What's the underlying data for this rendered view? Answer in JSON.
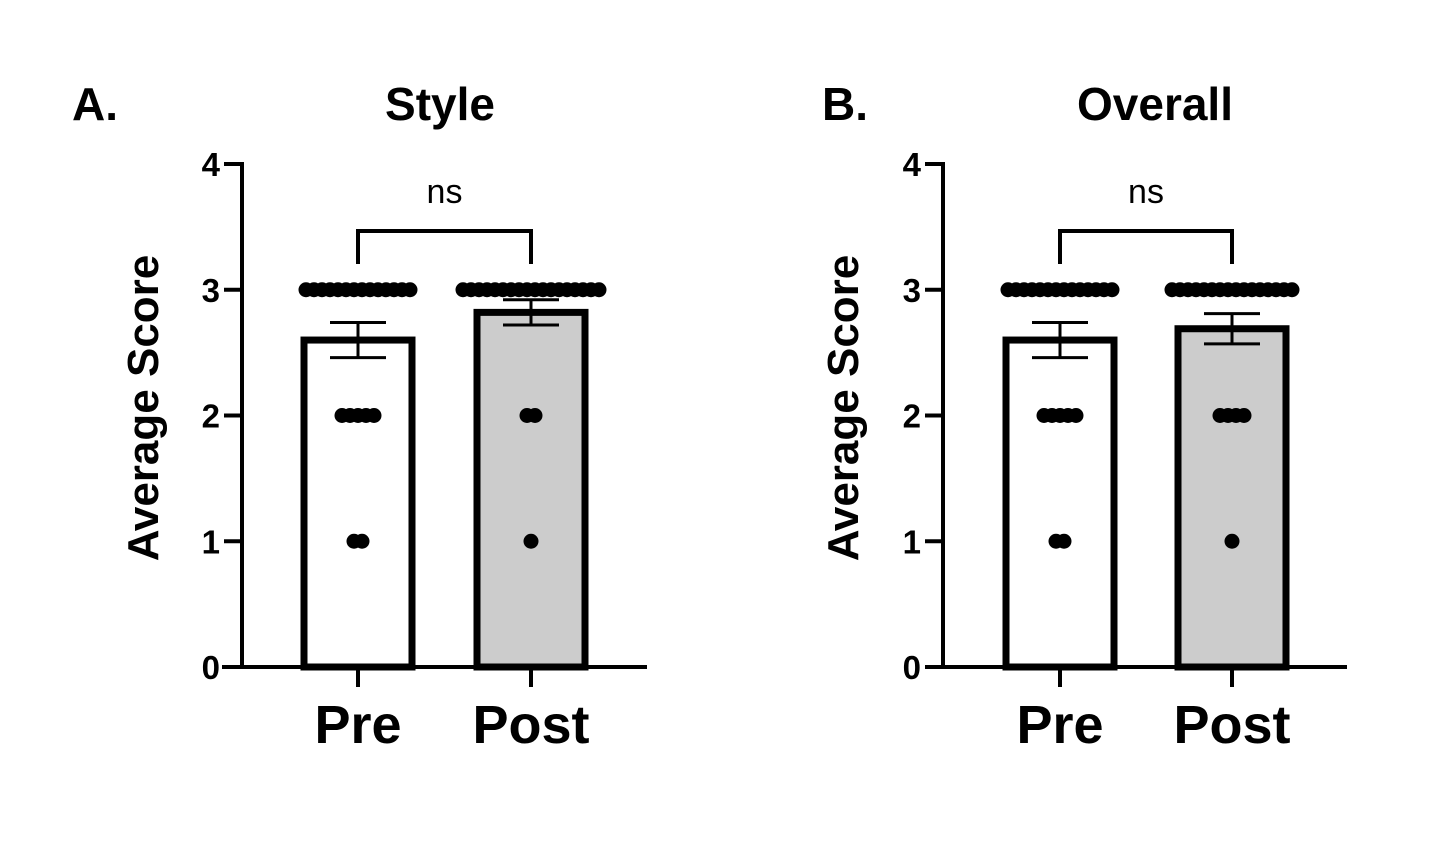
{
  "chart_data": [
    {
      "type": "bar",
      "panel_label": "A.",
      "title": "Style",
      "ylabel": "Average Score",
      "xlabel": "",
      "ylim": [
        0,
        4
      ],
      "yticks": [
        "0",
        "1",
        "2",
        "3",
        "4"
      ],
      "categories": [
        "Pre",
        "Post"
      ],
      "values": [
        2.6,
        2.82
      ],
      "error": [
        0.14,
        0.1
      ],
      "bar_colors": [
        "#ffffff",
        "#cccccc"
      ],
      "points": [
        [
          3,
          3,
          3,
          3,
          3,
          3,
          3,
          3,
          3,
          3,
          3,
          3,
          3,
          3,
          2,
          2,
          2,
          2,
          2,
          1,
          1
        ],
        [
          3,
          3,
          3,
          3,
          3,
          3,
          3,
          3,
          3,
          3,
          3,
          3,
          3,
          3,
          3,
          3,
          3,
          3,
          2,
          2,
          1
        ]
      ],
      "significance": {
        "label": "ns",
        "between": [
          "Pre",
          "Post"
        ]
      },
      "grid": false,
      "legend": "none"
    },
    {
      "type": "bar",
      "panel_label": "B.",
      "title": "Overall",
      "ylabel": "Average Score",
      "xlabel": "",
      "ylim": [
        0,
        4
      ],
      "yticks": [
        "0",
        "1",
        "2",
        "3",
        "4"
      ],
      "categories": [
        "Pre",
        "Post"
      ],
      "values": [
        2.6,
        2.69
      ],
      "error": [
        0.14,
        0.12
      ],
      "bar_colors": [
        "#ffffff",
        "#cccccc"
      ],
      "points": [
        [
          3,
          3,
          3,
          3,
          3,
          3,
          3,
          3,
          3,
          3,
          3,
          3,
          3,
          3,
          2,
          2,
          2,
          2,
          2,
          1,
          1
        ],
        [
          3,
          3,
          3,
          3,
          3,
          3,
          3,
          3,
          3,
          3,
          3,
          3,
          3,
          3,
          3,
          3,
          2,
          2,
          2,
          2,
          1
        ]
      ],
      "significance": {
        "label": "ns",
        "between": [
          "Pre",
          "Post"
        ]
      },
      "grid": false,
      "legend": "none"
    }
  ],
  "colors": {
    "ink": "#000000",
    "pre_bar": "#ffffff",
    "post_bar": "#cccccc"
  }
}
